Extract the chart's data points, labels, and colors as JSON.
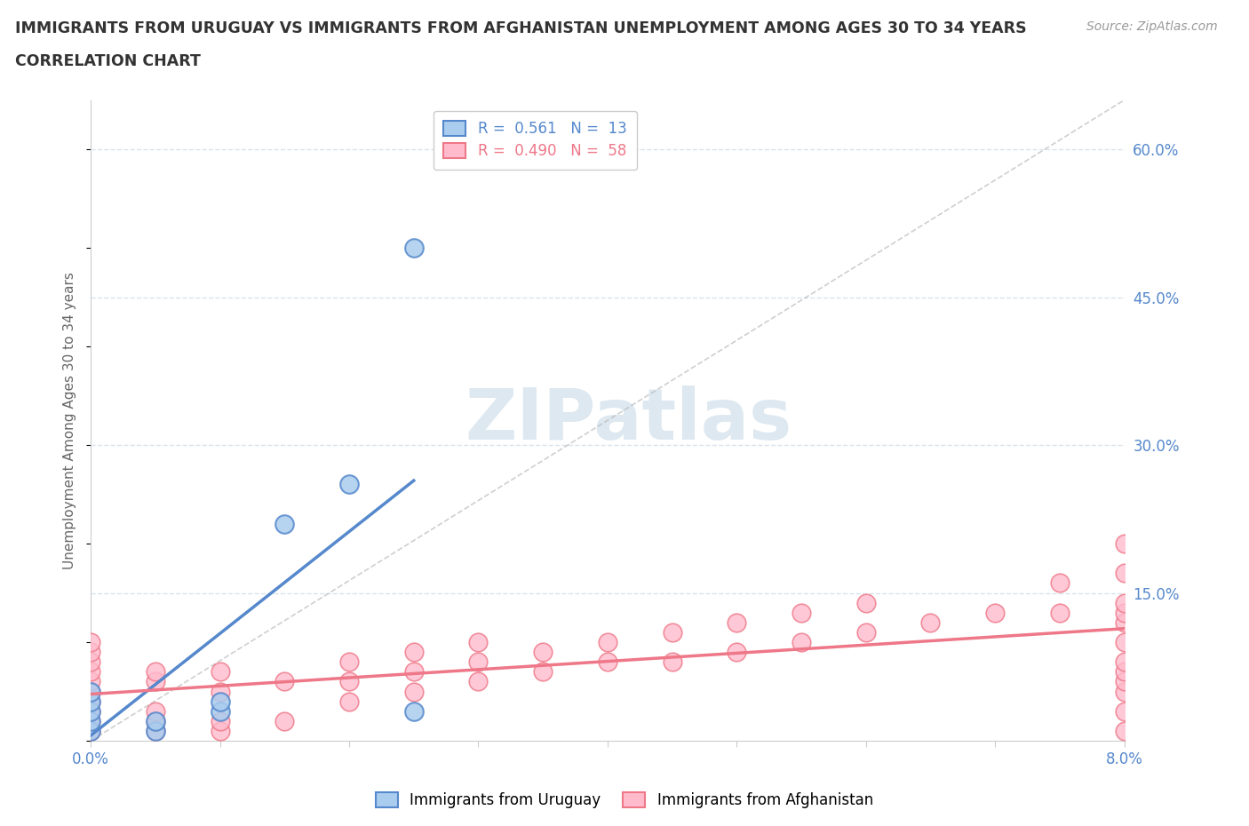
{
  "title_line1": "IMMIGRANTS FROM URUGUAY VS IMMIGRANTS FROM AFGHANISTAN UNEMPLOYMENT AMONG AGES 30 TO 34 YEARS",
  "title_line2": "CORRELATION CHART",
  "source_text": "Source: ZipAtlas.com",
  "ylabel": "Unemployment Among Ages 30 to 34 years",
  "xlim": [
    0.0,
    0.08
  ],
  "ylim": [
    0.0,
    0.65
  ],
  "xticks": [
    0.0,
    0.01,
    0.02,
    0.03,
    0.04,
    0.05,
    0.06,
    0.07,
    0.08
  ],
  "xticklabels": [
    "0.0%",
    "",
    "",
    "",
    "",
    "",
    "",
    "",
    "8.0%"
  ],
  "yticks_right": [
    0.0,
    0.15,
    0.3,
    0.45,
    0.6
  ],
  "ytick_right_labels": [
    "",
    "15.0%",
    "30.0%",
    "45.0%",
    "60.0%"
  ],
  "grid_color": "#d0dde8",
  "background_color": "#ffffff",
  "uruguay_color": "#5588cc",
  "uruguay_fill": "#aaccee",
  "afghanistan_color": "#ee7788",
  "afghanistan_fill": "#ffbbcc",
  "legend_R_uruguay": "0.561",
  "legend_N_uruguay": "13",
  "legend_R_afghanistan": "0.490",
  "legend_N_afghanistan": "58",
  "watermark": "ZIPatlas",
  "watermark_color": "#dde8f0",
  "ref_line_color": "#bbbbbb",
  "uruguay_x": [
    0.0,
    0.0,
    0.0,
    0.0,
    0.0,
    0.005,
    0.005,
    0.01,
    0.01,
    0.015,
    0.02,
    0.025,
    0.025
  ],
  "uruguay_y": [
    0.01,
    0.02,
    0.03,
    0.04,
    0.05,
    0.01,
    0.02,
    0.03,
    0.04,
    0.22,
    0.26,
    0.5,
    0.03
  ],
  "afghanistan_x": [
    0.0,
    0.0,
    0.0,
    0.0,
    0.0,
    0.0,
    0.0,
    0.0,
    0.0,
    0.0,
    0.005,
    0.005,
    0.005,
    0.005,
    0.005,
    0.01,
    0.01,
    0.01,
    0.01,
    0.015,
    0.015,
    0.02,
    0.02,
    0.02,
    0.025,
    0.025,
    0.025,
    0.03,
    0.03,
    0.03,
    0.035,
    0.035,
    0.04,
    0.04,
    0.045,
    0.045,
    0.05,
    0.05,
    0.055,
    0.055,
    0.06,
    0.06,
    0.065,
    0.07,
    0.075,
    0.075,
    0.08,
    0.08,
    0.08,
    0.08,
    0.08,
    0.08,
    0.08,
    0.08,
    0.08,
    0.08,
    0.08,
    0.08
  ],
  "afghanistan_y": [
    0.01,
    0.02,
    0.03,
    0.04,
    0.05,
    0.06,
    0.07,
    0.08,
    0.09,
    0.1,
    0.01,
    0.02,
    0.03,
    0.06,
    0.07,
    0.01,
    0.02,
    0.05,
    0.07,
    0.02,
    0.06,
    0.04,
    0.06,
    0.08,
    0.05,
    0.07,
    0.09,
    0.06,
    0.08,
    0.1,
    0.07,
    0.09,
    0.08,
    0.1,
    0.08,
    0.11,
    0.09,
    0.12,
    0.1,
    0.13,
    0.11,
    0.14,
    0.12,
    0.13,
    0.13,
    0.16,
    0.01,
    0.03,
    0.05,
    0.06,
    0.07,
    0.08,
    0.1,
    0.12,
    0.13,
    0.14,
    0.17,
    0.2
  ]
}
